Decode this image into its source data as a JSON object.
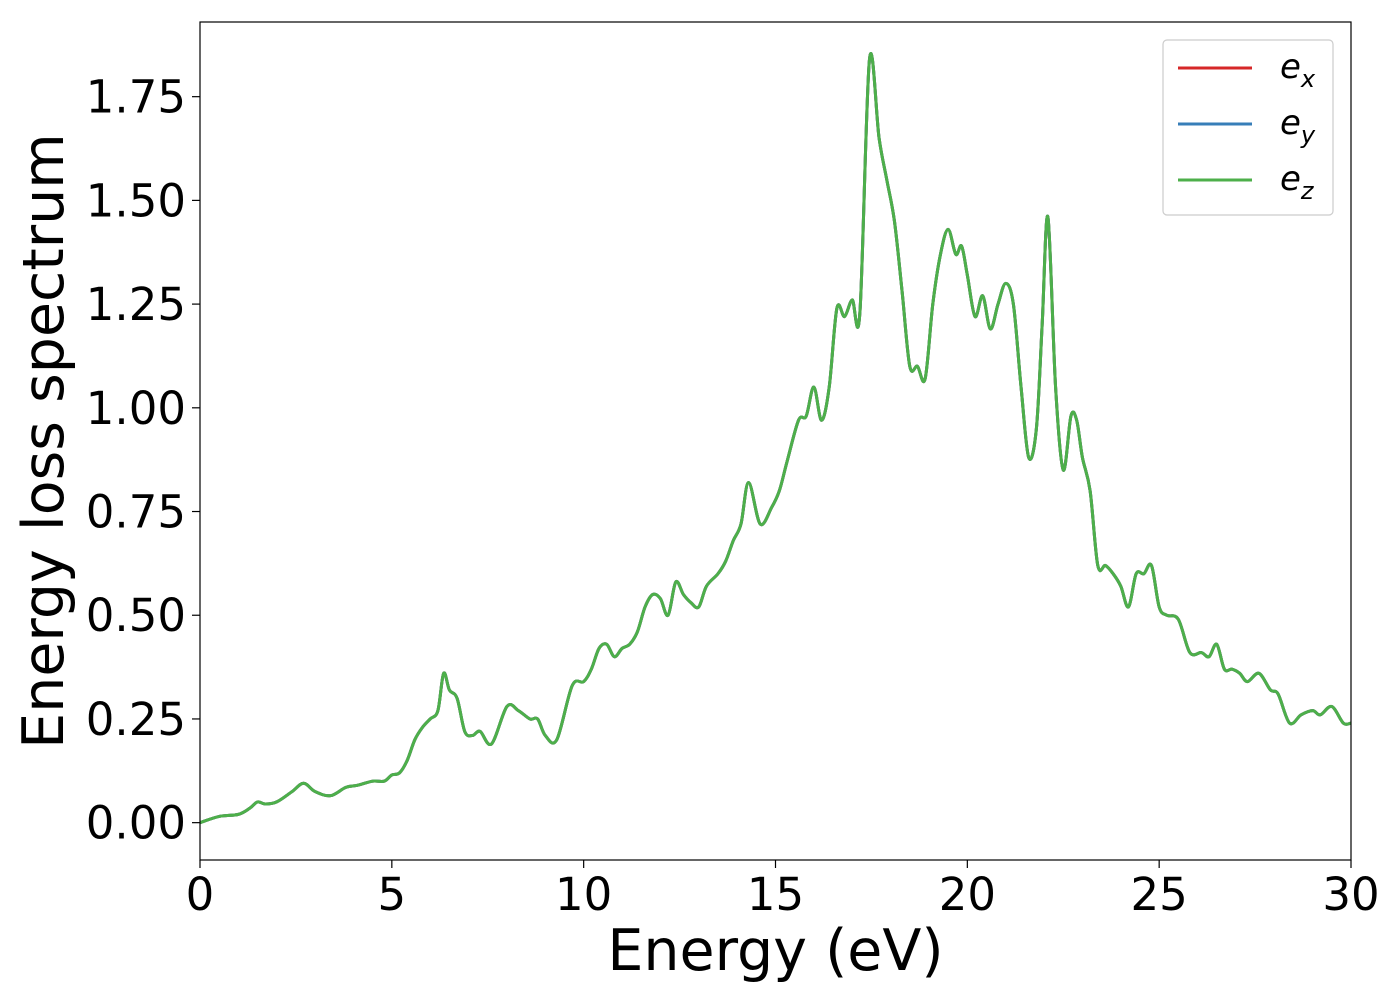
{
  "chart_data": {
    "type": "line",
    "title": "",
    "xlabel": "Energy (eV)",
    "ylabel": "Energy loss spectrum",
    "xlim": [
      0,
      30
    ],
    "ylim": [
      -0.09,
      1.93
    ],
    "xticks": [
      0,
      5,
      10,
      15,
      20,
      25,
      30
    ],
    "xtick_labels": [
      "0",
      "5",
      "10",
      "15",
      "20",
      "25",
      "30"
    ],
    "yticks": [
      0,
      0.25,
      0.5,
      0.75,
      1.0,
      1.25,
      1.5,
      1.75
    ],
    "ytick_labels": [
      "0.00",
      "0.25",
      "0.50",
      "0.75",
      "1.00",
      "1.25",
      "1.50",
      "1.75"
    ],
    "grid": false,
    "legend_position": "top-right",
    "x": [
      0,
      0.5,
      1.0,
      1.3,
      1.5,
      1.7,
      2.0,
      2.4,
      2.7,
      3.0,
      3.4,
      3.8,
      4.1,
      4.5,
      4.8,
      5.0,
      5.2,
      5.4,
      5.6,
      5.8,
      6.0,
      6.2,
      6.35,
      6.5,
      6.7,
      6.9,
      7.1,
      7.3,
      7.6,
      8.0,
      8.3,
      8.6,
      8.8,
      9.0,
      9.3,
      9.7,
      10.0,
      10.2,
      10.4,
      10.6,
      10.8,
      11.0,
      11.2,
      11.4,
      11.6,
      11.8,
      12.0,
      12.2,
      12.4,
      12.6,
      12.8,
      13.0,
      13.2,
      13.5,
      13.7,
      13.9,
      14.1,
      14.3,
      14.6,
      14.9,
      15.1,
      15.3,
      15.6,
      15.8,
      16.0,
      16.2,
      16.4,
      16.6,
      16.8,
      17.0,
      17.2,
      17.45,
      17.7,
      17.9,
      18.1,
      18.3,
      18.5,
      18.7,
      18.9,
      19.1,
      19.3,
      19.5,
      19.7,
      19.85,
      20.0,
      20.2,
      20.4,
      20.6,
      20.8,
      21.0,
      21.2,
      21.4,
      21.6,
      21.8,
      21.95,
      22.1,
      22.3,
      22.5,
      22.7,
      22.85,
      23.0,
      23.2,
      23.4,
      23.6,
      23.8,
      24.0,
      24.2,
      24.4,
      24.6,
      24.8,
      25.0,
      25.2,
      25.5,
      25.8,
      26.1,
      26.3,
      26.5,
      26.7,
      26.9,
      27.1,
      27.3,
      27.6,
      27.9,
      28.1,
      28.4,
      28.7,
      29.0,
      29.2,
      29.5,
      29.8,
      30.0
    ],
    "series": [
      {
        "name": "e_x",
        "label_base": "e",
        "label_sub": "x",
        "color": "#d62728",
        "values": [
          0.0,
          0.015,
          0.02,
          0.035,
          0.05,
          0.045,
          0.05,
          0.075,
          0.095,
          0.075,
          0.065,
          0.085,
          0.09,
          0.1,
          0.1,
          0.115,
          0.12,
          0.15,
          0.2,
          0.23,
          0.25,
          0.27,
          0.36,
          0.32,
          0.3,
          0.22,
          0.21,
          0.22,
          0.19,
          0.28,
          0.27,
          0.25,
          0.25,
          0.21,
          0.2,
          0.33,
          0.34,
          0.37,
          0.42,
          0.43,
          0.4,
          0.42,
          0.43,
          0.46,
          0.52,
          0.55,
          0.54,
          0.5,
          0.58,
          0.55,
          0.53,
          0.52,
          0.57,
          0.6,
          0.63,
          0.68,
          0.72,
          0.82,
          0.72,
          0.76,
          0.8,
          0.87,
          0.97,
          0.98,
          1.05,
          0.97,
          1.05,
          1.24,
          1.22,
          1.26,
          1.23,
          1.84,
          1.65,
          1.55,
          1.45,
          1.28,
          1.1,
          1.1,
          1.07,
          1.25,
          1.37,
          1.43,
          1.37,
          1.39,
          1.32,
          1.22,
          1.27,
          1.19,
          1.25,
          1.3,
          1.25,
          1.05,
          0.88,
          0.95,
          1.2,
          1.46,
          1.05,
          0.85,
          0.98,
          0.97,
          0.88,
          0.8,
          0.62,
          0.62,
          0.6,
          0.57,
          0.52,
          0.6,
          0.6,
          0.62,
          0.52,
          0.5,
          0.49,
          0.41,
          0.41,
          0.4,
          0.43,
          0.37,
          0.37,
          0.36,
          0.34,
          0.36,
          0.32,
          0.31,
          0.24,
          0.26,
          0.27,
          0.26,
          0.28,
          0.24,
          0.24
        ]
      },
      {
        "name": "e_y",
        "label_base": "e",
        "label_sub": "y",
        "color": "#377eb8",
        "values": [
          0.0,
          0.015,
          0.02,
          0.035,
          0.05,
          0.045,
          0.05,
          0.075,
          0.095,
          0.075,
          0.065,
          0.085,
          0.09,
          0.1,
          0.1,
          0.115,
          0.12,
          0.15,
          0.2,
          0.23,
          0.25,
          0.27,
          0.36,
          0.32,
          0.3,
          0.22,
          0.21,
          0.22,
          0.19,
          0.28,
          0.27,
          0.25,
          0.25,
          0.21,
          0.2,
          0.33,
          0.34,
          0.37,
          0.42,
          0.43,
          0.4,
          0.42,
          0.43,
          0.46,
          0.52,
          0.55,
          0.54,
          0.5,
          0.58,
          0.55,
          0.53,
          0.52,
          0.57,
          0.6,
          0.63,
          0.68,
          0.72,
          0.82,
          0.72,
          0.76,
          0.8,
          0.87,
          0.97,
          0.98,
          1.05,
          0.97,
          1.05,
          1.24,
          1.22,
          1.26,
          1.23,
          1.84,
          1.65,
          1.55,
          1.45,
          1.28,
          1.1,
          1.1,
          1.07,
          1.25,
          1.37,
          1.43,
          1.37,
          1.39,
          1.32,
          1.22,
          1.27,
          1.19,
          1.25,
          1.3,
          1.25,
          1.05,
          0.88,
          0.95,
          1.2,
          1.46,
          1.05,
          0.85,
          0.98,
          0.97,
          0.88,
          0.8,
          0.62,
          0.62,
          0.6,
          0.57,
          0.52,
          0.6,
          0.6,
          0.62,
          0.52,
          0.5,
          0.49,
          0.41,
          0.41,
          0.4,
          0.43,
          0.37,
          0.37,
          0.36,
          0.34,
          0.36,
          0.32,
          0.31,
          0.24,
          0.26,
          0.27,
          0.26,
          0.28,
          0.24,
          0.24
        ]
      },
      {
        "name": "e_z",
        "label_base": "e",
        "label_sub": "z",
        "color": "#4daf4a",
        "values": [
          0.0,
          0.015,
          0.02,
          0.035,
          0.05,
          0.045,
          0.05,
          0.075,
          0.095,
          0.075,
          0.065,
          0.085,
          0.09,
          0.1,
          0.1,
          0.115,
          0.12,
          0.15,
          0.2,
          0.23,
          0.25,
          0.27,
          0.36,
          0.32,
          0.3,
          0.22,
          0.21,
          0.22,
          0.19,
          0.28,
          0.27,
          0.25,
          0.25,
          0.21,
          0.2,
          0.33,
          0.34,
          0.37,
          0.42,
          0.43,
          0.4,
          0.42,
          0.43,
          0.46,
          0.52,
          0.55,
          0.54,
          0.5,
          0.58,
          0.55,
          0.53,
          0.52,
          0.57,
          0.6,
          0.63,
          0.68,
          0.72,
          0.82,
          0.72,
          0.76,
          0.8,
          0.87,
          0.97,
          0.98,
          1.05,
          0.97,
          1.05,
          1.24,
          1.22,
          1.26,
          1.23,
          1.84,
          1.65,
          1.55,
          1.45,
          1.28,
          1.1,
          1.1,
          1.07,
          1.25,
          1.37,
          1.43,
          1.37,
          1.39,
          1.32,
          1.22,
          1.27,
          1.19,
          1.25,
          1.3,
          1.25,
          1.05,
          0.88,
          0.95,
          1.2,
          1.46,
          1.05,
          0.85,
          0.98,
          0.97,
          0.88,
          0.8,
          0.62,
          0.62,
          0.6,
          0.57,
          0.52,
          0.6,
          0.6,
          0.62,
          0.52,
          0.5,
          0.49,
          0.41,
          0.41,
          0.4,
          0.43,
          0.37,
          0.37,
          0.36,
          0.34,
          0.36,
          0.32,
          0.31,
          0.24,
          0.26,
          0.27,
          0.26,
          0.28,
          0.24,
          0.24
        ]
      }
    ]
  }
}
